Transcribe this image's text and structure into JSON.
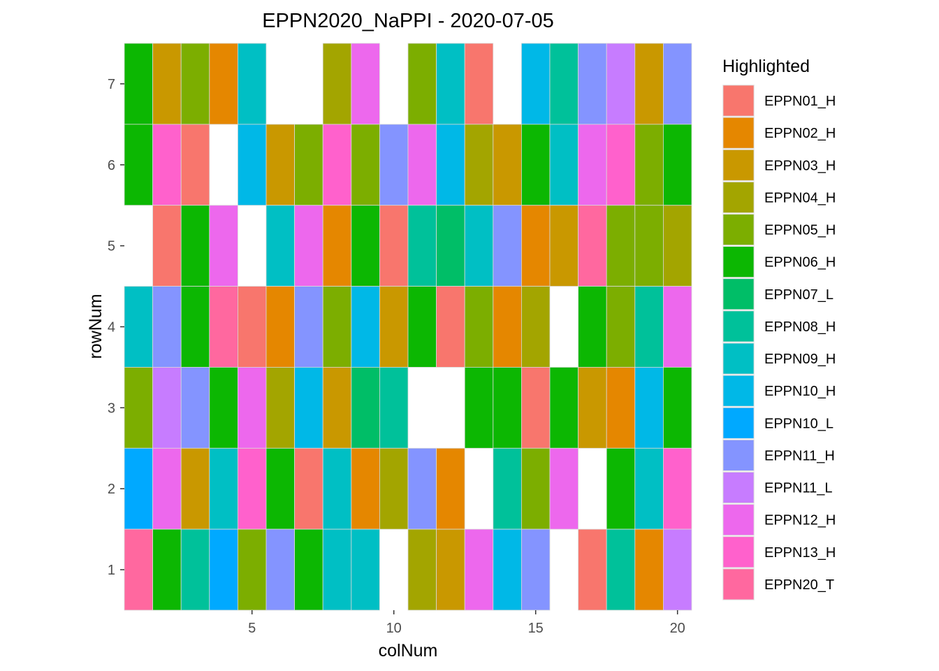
{
  "chart_data": {
    "type": "heatmap",
    "title": "EPPN2020_NaPPI - 2020-07-05",
    "xlabel": "colNum",
    "ylabel": "rowNum",
    "xlim": [
      0.5,
      20.5
    ],
    "ylim": [
      0.5,
      7.5
    ],
    "xticks": [
      "5",
      "10",
      "15",
      "20"
    ],
    "yticks": [
      "1",
      "2",
      "3",
      "4",
      "5",
      "6",
      "7"
    ],
    "legend": {
      "title": "Highlighted",
      "placement": "right",
      "entries": [
        {
          "label": "EPPN01_H",
          "color": "#F8766D"
        },
        {
          "label": "EPPN02_H",
          "color": "#E58700"
        },
        {
          "label": "EPPN03_H",
          "color": "#C99800"
        },
        {
          "label": "EPPN04_H",
          "color": "#A3A500"
        },
        {
          "label": "EPPN05_H",
          "color": "#6BB100"
        },
        {
          "label": "EPPN06_H",
          "color": "#00BA38"
        },
        {
          "label": "EPPN07_L",
          "color": "#00BF7D"
        },
        {
          "label": "EPPN08_H",
          "color": "#00C0AF"
        },
        {
          "label": "EPPN09_H",
          "color": "#00BCD8"
        },
        {
          "label": "EPPN10_H",
          "color": "#00B0F6"
        },
        {
          "label": "EPPN10_L",
          "color": "#619CFF"
        },
        {
          "label": "EPPN11_H",
          "color": "#B983FF"
        },
        {
          "label": "EPPN11_L",
          "color": "#E76BF3"
        },
        {
          "label": "EPPN12_H",
          "color": "#FD61D1"
        },
        {
          "label": "EPPN13_H",
          "color": "#FF67A4"
        },
        {
          "label": "EPPN20_T",
          "color": "#FF6C91"
        }
      ]
    },
    "grid": false,
    "colors_rendered": [
      "#F8766D",
      "#E58700",
      "#C99800",
      "#A3A500",
      "#7CAE00",
      "#0CB702",
      "#00BE67",
      "#00C19A",
      "#00BFC4",
      "#00B8E7",
      "#00A9FF",
      "#8494FF",
      "#C77CFF",
      "#ED68ED",
      "#FF61CC",
      "#FF689F"
    ],
    "rows": [
      {
        "row": 7,
        "cells": [
          "EPPN06_H",
          "EPPN03_H",
          "EPPN05_H",
          "EPPN02_H",
          "EPPN09_H",
          null,
          null,
          "EPPN04_H",
          "EPPN12_H",
          null,
          "EPPN05_H",
          "EPPN09_H",
          "EPPN01_H",
          null,
          "EPPN10_H",
          "EPPN08_H",
          "EPPN11_H",
          "EPPN11_L",
          "EPPN03_H",
          "EPPN11_H"
        ]
      },
      {
        "row": 6,
        "cells": [
          "EPPN06_H",
          "EPPN13_H",
          "EPPN01_H",
          null,
          "EPPN10_H",
          "EPPN03_H",
          "EPPN05_H",
          "EPPN13_H",
          "EPPN05_H",
          "EPPN11_H",
          "EPPN12_H",
          "EPPN10_H",
          "EPPN04_H",
          "EPPN03_H",
          "EPPN06_H",
          "EPPN09_H",
          "EPPN12_H",
          "EPPN13_H",
          "EPPN05_H",
          "EPPN06_H"
        ]
      },
      {
        "row": 5,
        "cells": [
          null,
          "EPPN01_H",
          "EPPN06_H",
          "EPPN12_H",
          null,
          "EPPN09_H",
          "EPPN12_H",
          "EPPN02_H",
          "EPPN06_H",
          "EPPN01_H",
          "EPPN08_H",
          "EPPN07_L",
          "EPPN09_H",
          "EPPN11_H",
          "EPPN02_H",
          "EPPN03_H",
          "EPPN20_T",
          "EPPN05_H",
          "EPPN05_H",
          "EPPN04_H"
        ]
      },
      {
        "row": 4,
        "cells": [
          "EPPN09_H",
          "EPPN11_H",
          "EPPN06_H",
          "EPPN20_T",
          "EPPN01_H",
          "EPPN02_H",
          "EPPN11_H",
          "EPPN05_H",
          "EPPN10_H",
          "EPPN03_H",
          "EPPN06_H",
          "EPPN01_H",
          "EPPN05_H",
          "EPPN02_H",
          "EPPN04_H",
          null,
          "EPPN06_H",
          "EPPN05_H",
          "EPPN08_H",
          "EPPN12_H"
        ]
      },
      {
        "row": 3,
        "cells": [
          "EPPN05_H",
          "EPPN11_L",
          "EPPN11_H",
          "EPPN06_H",
          "EPPN12_H",
          "EPPN04_H",
          "EPPN10_H",
          "EPPN03_H",
          "EPPN07_L",
          "EPPN08_H",
          null,
          null,
          "EPPN06_H",
          "EPPN06_H",
          "EPPN01_H",
          "EPPN06_H",
          "EPPN03_H",
          "EPPN02_H",
          "EPPN10_H",
          "EPPN06_H"
        ]
      },
      {
        "row": 2,
        "cells": [
          "EPPN10_L",
          "EPPN12_H",
          "EPPN03_H",
          "EPPN09_H",
          "EPPN13_H",
          "EPPN06_H",
          "EPPN01_H",
          "EPPN09_H",
          "EPPN02_H",
          "EPPN04_H",
          "EPPN11_H",
          "EPPN02_H",
          null,
          "EPPN08_H",
          "EPPN05_H",
          "EPPN12_H",
          null,
          "EPPN06_H",
          "EPPN09_H",
          "EPPN13_H"
        ]
      },
      {
        "row": 1,
        "cells": [
          "EPPN20_T",
          "EPPN06_H",
          "EPPN08_H",
          "EPPN10_L",
          "EPPN05_H",
          "EPPN11_H",
          "EPPN06_H",
          "EPPN09_H",
          "EPPN09_H",
          null,
          "EPPN04_H",
          "EPPN03_H",
          "EPPN12_H",
          "EPPN10_H",
          "EPPN11_H",
          null,
          "EPPN01_H",
          "EPPN08_H",
          "EPPN02_H",
          "EPPN11_L"
        ]
      }
    ]
  }
}
